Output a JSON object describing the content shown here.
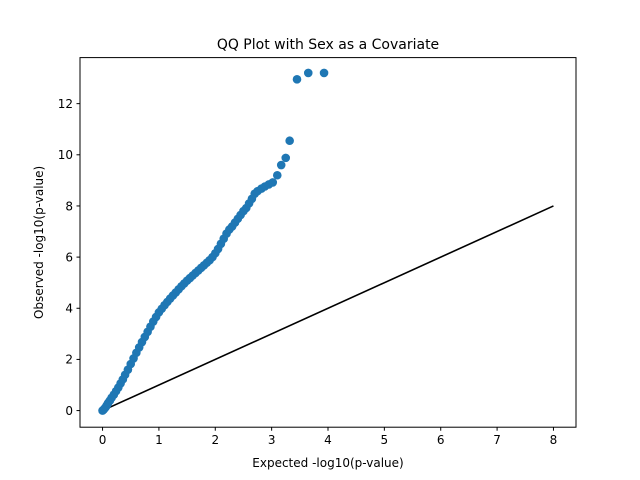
{
  "chart_data": {
    "type": "scatter",
    "title": "QQ Plot with Sex as a Covariate",
    "xlabel": "Expected -log10(p-value)",
    "ylabel": "Observed -log10(p-value)",
    "xlim": [
      -0.4,
      8.4
    ],
    "ylim": [
      -0.65,
      13.8
    ],
    "xticks": [
      0,
      1,
      2,
      3,
      4,
      5,
      6,
      7,
      8
    ],
    "yticks": [
      0,
      2,
      4,
      6,
      8,
      10,
      12
    ],
    "grid": false,
    "legend": "none",
    "colors": {
      "points": "#1f77b4",
      "reference_line": "#000000"
    },
    "reference_line": {
      "x": [
        0,
        8
      ],
      "y": [
        0,
        8
      ]
    },
    "points": [
      [
        0.0,
        0.0
      ],
      [
        0.02,
        0.04
      ],
      [
        0.04,
        0.09
      ],
      [
        0.06,
        0.15
      ],
      [
        0.08,
        0.22
      ],
      [
        0.1,
        0.3
      ],
      [
        0.13,
        0.39
      ],
      [
        0.16,
        0.5
      ],
      [
        0.2,
        0.62
      ],
      [
        0.24,
        0.76
      ],
      [
        0.28,
        0.9
      ],
      [
        0.32,
        1.06
      ],
      [
        0.36,
        1.22
      ],
      [
        0.4,
        1.4
      ],
      [
        0.45,
        1.6
      ],
      [
        0.5,
        1.82
      ],
      [
        0.55,
        2.04
      ],
      [
        0.6,
        2.26
      ],
      [
        0.65,
        2.47
      ],
      [
        0.7,
        2.68
      ],
      [
        0.75,
        2.88
      ],
      [
        0.8,
        3.08
      ],
      [
        0.85,
        3.28
      ],
      [
        0.9,
        3.48
      ],
      [
        0.95,
        3.66
      ],
      [
        1.0,
        3.84
      ],
      [
        1.05,
        3.98
      ],
      [
        1.1,
        4.12
      ],
      [
        1.15,
        4.25
      ],
      [
        1.2,
        4.38
      ],
      [
        1.25,
        4.5
      ],
      [
        1.3,
        4.62
      ],
      [
        1.35,
        4.74
      ],
      [
        1.4,
        4.86
      ],
      [
        1.45,
        4.97
      ],
      [
        1.5,
        5.08
      ],
      [
        1.55,
        5.18
      ],
      [
        1.6,
        5.28
      ],
      [
        1.65,
        5.38
      ],
      [
        1.7,
        5.48
      ],
      [
        1.75,
        5.58
      ],
      [
        1.8,
        5.68
      ],
      [
        1.85,
        5.78
      ],
      [
        1.9,
        5.88
      ],
      [
        1.95,
        6.0
      ],
      [
        2.0,
        6.15
      ],
      [
        2.05,
        6.32
      ],
      [
        2.1,
        6.52
      ],
      [
        2.15,
        6.72
      ],
      [
        2.2,
        6.92
      ],
      [
        2.25,
        7.08
      ],
      [
        2.3,
        7.2
      ],
      [
        2.35,
        7.35
      ],
      [
        2.4,
        7.5
      ],
      [
        2.45,
        7.65
      ],
      [
        2.5,
        7.8
      ],
      [
        2.55,
        7.92
      ],
      [
        2.6,
        8.1
      ],
      [
        2.65,
        8.28
      ],
      [
        2.7,
        8.48
      ],
      [
        2.75,
        8.58
      ],
      [
        2.82,
        8.68
      ],
      [
        2.88,
        8.76
      ],
      [
        2.95,
        8.84
      ],
      [
        3.02,
        8.92
      ],
      [
        3.1,
        9.2
      ],
      [
        3.17,
        9.6
      ],
      [
        3.25,
        9.88
      ],
      [
        3.32,
        10.55
      ],
      [
        3.45,
        12.95
      ],
      [
        3.65,
        13.2
      ],
      [
        3.93,
        13.2
      ]
    ]
  }
}
